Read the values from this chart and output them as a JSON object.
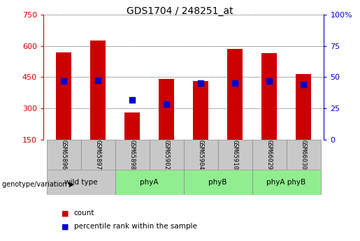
{
  "title": "GDS1704 / 248251_at",
  "samples": [
    "GSM65896",
    "GSM65897",
    "GSM65898",
    "GSM65902",
    "GSM65904",
    "GSM65910",
    "GSM66029",
    "GSM66030"
  ],
  "counts": [
    570,
    625,
    280,
    440,
    430,
    585,
    565,
    465
  ],
  "percentile_vals": [
    430,
    435,
    340,
    320,
    420,
    420,
    430,
    415
  ],
  "bar_bottom": 150,
  "y_min": 150,
  "y_max": 750,
  "y_ticks": [
    150,
    300,
    450,
    600,
    750
  ],
  "y2_ticks": [
    0,
    25,
    50,
    75,
    100
  ],
  "bar_color": "#cc0000",
  "pct_color": "#0000cc",
  "groups": [
    {
      "label": "wild type",
      "indices": [
        0,
        1
      ],
      "color": "#c8c8c8"
    },
    {
      "label": "phyA",
      "indices": [
        2,
        3
      ],
      "color": "#90ee90"
    },
    {
      "label": "phyB",
      "indices": [
        4,
        5
      ],
      "color": "#90ee90"
    },
    {
      "label": "phyA phyB",
      "indices": [
        6,
        7
      ],
      "color": "#90ee90"
    }
  ],
  "xlabel": "genotype/variation",
  "legend_count_label": "count",
  "legend_pct_label": "percentile rank within the sample",
  "left_axis_color": "#cc0000",
  "right_axis_color": "#0000cc",
  "bar_width": 0.45,
  "pct_marker_size": 40
}
